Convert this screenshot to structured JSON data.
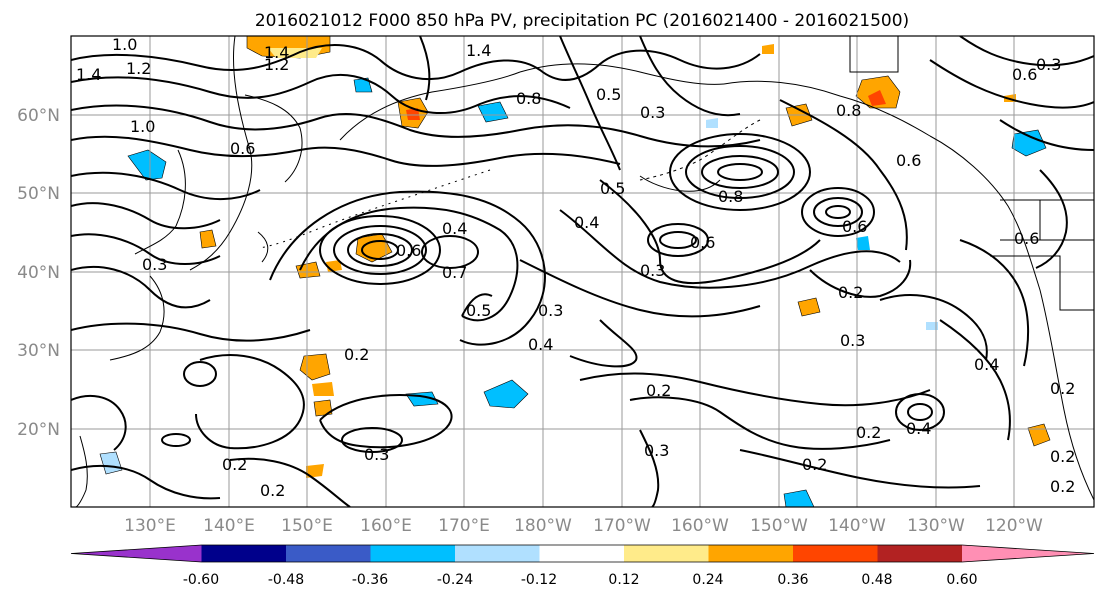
{
  "title": "2016021012 F000 850 hPa PV, precipitation PC (2016021400 - 2016021500)",
  "map": {
    "lat_ticks": [
      "60°N",
      "50°N",
      "40°N",
      "30°N",
      "20°N"
    ],
    "lon_ticks": [
      "130°E",
      "140°E",
      "150°E",
      "160°E",
      "170°E",
      "180°W",
      "170°W",
      "160°W",
      "150°W",
      "140°W",
      "130°W",
      "120°W"
    ],
    "contour_labels": [
      "1.0",
      "1.2",
      "1.4",
      "1.4",
      "1.2",
      "1.4",
      "1.0",
      "0.8",
      "0.6",
      "0.5",
      "0.4",
      "0.3",
      "0.6",
      "0.3",
      "0.8",
      "0.6",
      "0.8",
      "0.6",
      "0.6",
      "0.4",
      "0.7",
      "0.5",
      "0.3",
      "0.4",
      "0.3",
      "0.2",
      "0.2",
      "0.3",
      "0.2",
      "0.4",
      "0.2",
      "0.4",
      "0.2",
      "0.3",
      "0.2",
      "0.2",
      "0.3",
      "0.2",
      "0.2",
      "0.2",
      "0.5",
      "0.6",
      "0.3",
      "0.6"
    ]
  },
  "colorbar": {
    "labels": [
      "-0.60",
      "-0.48",
      "-0.36",
      "-0.24",
      "-0.12",
      "0.12",
      "0.24",
      "0.36",
      "0.48",
      "0.60"
    ],
    "colors": [
      "#9932cc",
      "#00008b",
      "#3a5bc7",
      "#00bfff",
      "#b0e0ff",
      "#ffffff",
      "#ffeb8a",
      "#ffa500",
      "#ff4500",
      "#b22222",
      "#ff8fb4"
    ]
  }
}
